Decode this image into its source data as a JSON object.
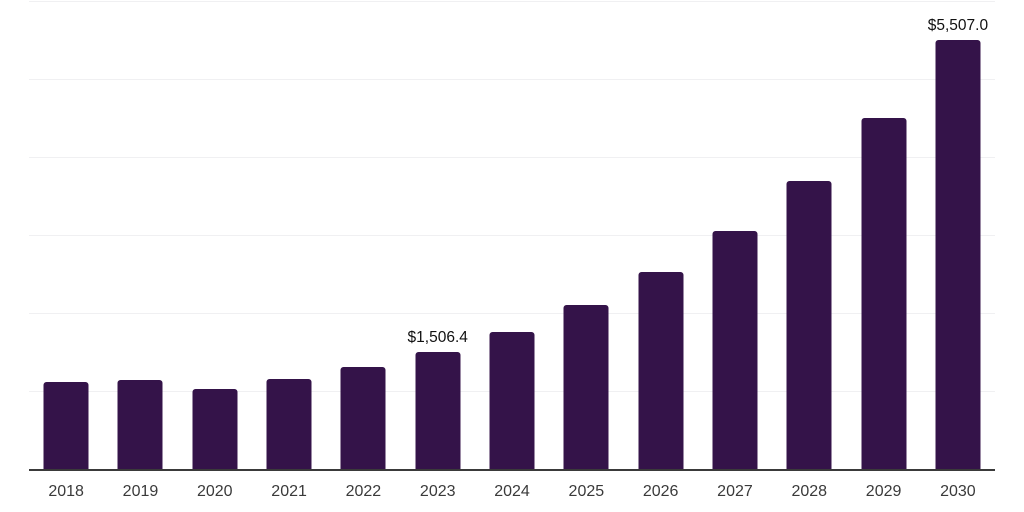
{
  "chart_data": {
    "type": "bar",
    "categories": [
      "2018",
      "2019",
      "2020",
      "2021",
      "2022",
      "2023",
      "2024",
      "2025",
      "2026",
      "2027",
      "2028",
      "2029",
      "2030"
    ],
    "values": [
      1115,
      1145,
      1025,
      1155,
      1315,
      1506.4,
      1760,
      2105,
      2535,
      3055,
      3695,
      4500,
      5507
    ],
    "point_labels": {
      "2023": "$1,506.4",
      "2030": "$5,507.0"
    },
    "ylim": [
      0,
      6000
    ],
    "gridline_step": 1000,
    "grid": true,
    "legend": false,
    "colors": {
      "bar": "#341349",
      "gridline": "#f0f0f2",
      "axis_line": "#3a3a3a",
      "tick_label": "#3a3a3a",
      "value_label": "#111111",
      "background": "#ffffff"
    }
  }
}
